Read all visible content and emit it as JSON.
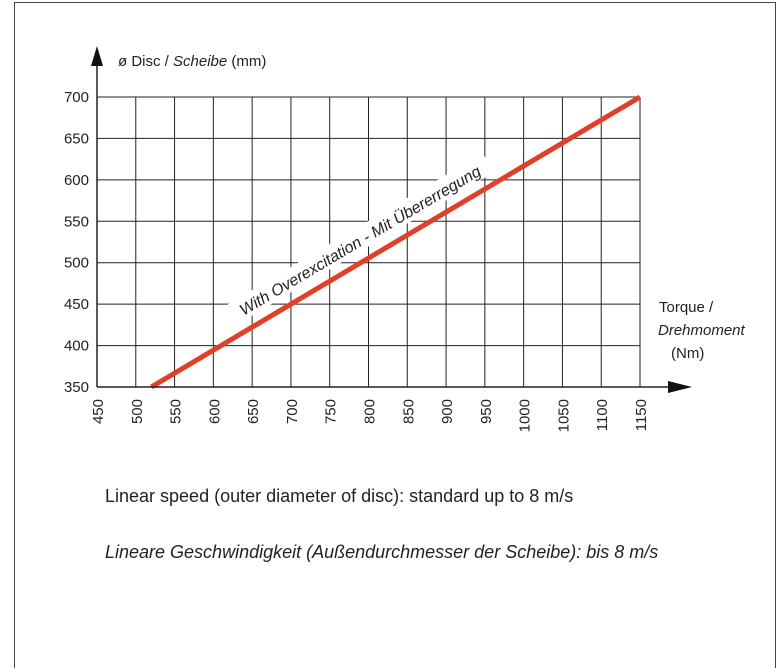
{
  "chart_data": {
    "type": "line",
    "ylabel_main": "ø Disc / ",
    "ylabel_italic": "Scheibe",
    "ylabel_unit": " (mm)",
    "xlabel_line1": "Torque /",
    "xlabel_line2": "Drehmoment",
    "xlabel_line3": "(Nm)",
    "xlim": [
      450,
      1150
    ],
    "ylim": [
      350,
      700
    ],
    "x_ticks": [
      "450",
      "500",
      "550",
      "600",
      "650",
      "700",
      "750",
      "800",
      "850",
      "900",
      "950",
      "1000",
      "1050",
      "1100",
      "1150"
    ],
    "y_ticks": [
      "350",
      "400",
      "450",
      "500",
      "550",
      "600",
      "650",
      "700"
    ],
    "grid": true,
    "series": [
      {
        "name": "With Overexcitation - Mit Übererregung",
        "color": "#e0402a",
        "x": [
          520,
          1150
        ],
        "y": [
          350,
          700
        ]
      }
    ]
  },
  "notes": {
    "english": "Linear speed (outer diameter of disc): standard up to 8 m/s",
    "german": "Lineare Geschwindigkeit (Außendurchmesser der Scheibe): bis 8 m/s"
  }
}
